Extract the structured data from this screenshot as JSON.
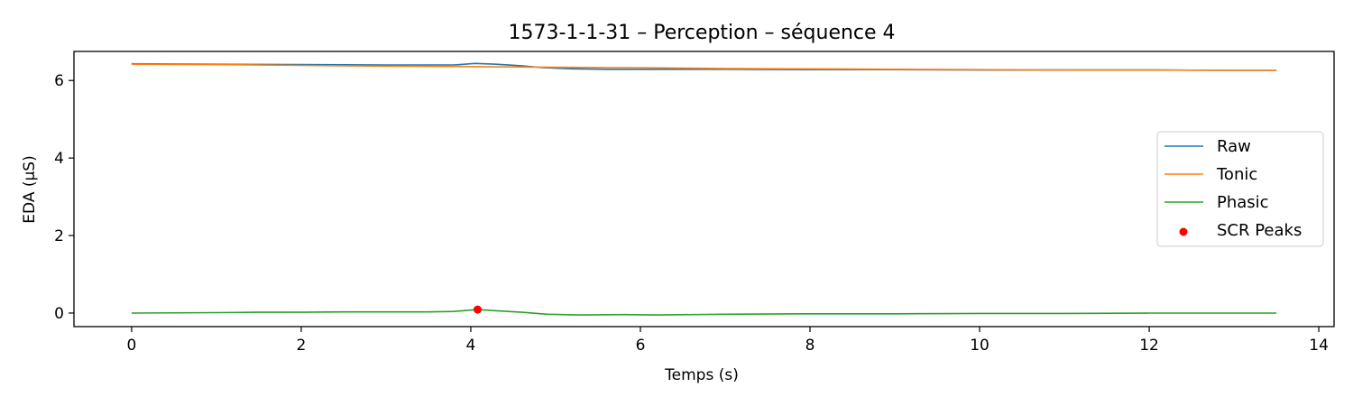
{
  "chart_data": {
    "type": "line",
    "title": "1573-1-1-31 – Perception – séquence 4",
    "xlabel": "Temps (s)",
    "ylabel": "EDA (µS)",
    "xlim": [
      -0.68,
      14.18
    ],
    "ylim": [
      -0.35,
      6.75
    ],
    "xticks": [
      0,
      2,
      4,
      6,
      8,
      10,
      12,
      14
    ],
    "yticks": [
      0,
      2,
      4,
      6
    ],
    "grid": false,
    "legend_position": "center-right",
    "series": [
      {
        "name": "Raw",
        "color": "#1f77b4",
        "x": [
          0,
          1,
          2,
          3,
          3.8,
          4.05,
          4.3,
          4.6,
          4.85,
          5.2,
          5.6,
          6,
          7,
          8,
          9,
          10,
          11,
          12,
          13,
          13.5
        ],
        "y": [
          6.43,
          6.42,
          6.41,
          6.4,
          6.4,
          6.44,
          6.42,
          6.38,
          6.33,
          6.3,
          6.29,
          6.29,
          6.29,
          6.28,
          6.28,
          6.27,
          6.27,
          6.27,
          6.26,
          6.26
        ]
      },
      {
        "name": "Tonic",
        "color": "#ff7f0e",
        "x": [
          0,
          1,
          2,
          3,
          4,
          5,
          6,
          7,
          8,
          9,
          10,
          11,
          12,
          13,
          13.5
        ],
        "y": [
          6.42,
          6.41,
          6.39,
          6.37,
          6.36,
          6.34,
          6.33,
          6.31,
          6.3,
          6.29,
          6.28,
          6.27,
          6.27,
          6.26,
          6.26
        ]
      },
      {
        "name": "Phasic",
        "color": "#2ca02c",
        "x": [
          0,
          1,
          1.5,
          2,
          2.5,
          3,
          3.5,
          3.8,
          4.08,
          4.3,
          4.6,
          4.9,
          5.3,
          5.8,
          6.2,
          7,
          8,
          9,
          10,
          11,
          12,
          13,
          13.5
        ],
        "y": [
          0.0,
          0.01,
          0.02,
          0.02,
          0.03,
          0.03,
          0.03,
          0.04,
          0.09,
          0.06,
          0.02,
          -0.03,
          -0.05,
          -0.04,
          -0.05,
          -0.03,
          -0.02,
          -0.02,
          -0.01,
          -0.01,
          0.0,
          0.0,
          0.0
        ]
      }
    ],
    "scatter": [
      {
        "name": "SCR Peaks",
        "color": "#ff0000",
        "points": [
          [
            4.08,
            0.09
          ]
        ]
      }
    ]
  }
}
